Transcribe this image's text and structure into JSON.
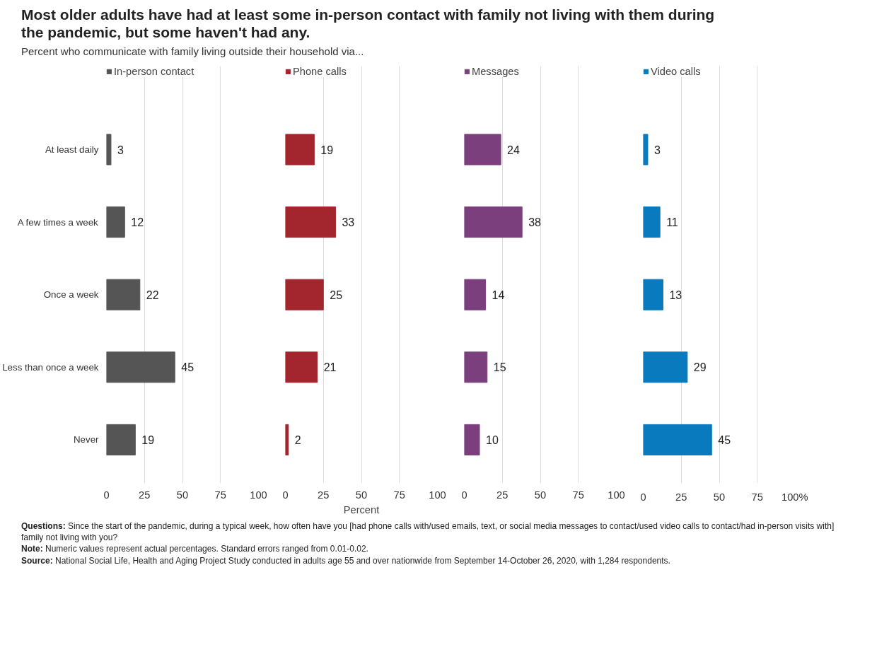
{
  "chart_data": [
    {
      "type": "bar",
      "orientation": "horizontal",
      "title": "Most older adults have had at least some in-person contact with family not living with them during the pandemic, but some haven't had any.",
      "subtitle": "Percent who communicate with family living outside their household via...",
      "categories": [
        "At least daily",
        "A few times a week",
        "Once a week",
        "Less than once a week",
        "Never"
      ],
      "series": [
        {
          "name": "In-person contact",
          "color": "#555555",
          "values": [
            3,
            12,
            22,
            45,
            19
          ]
        }
      ],
      "xlim": [
        0,
        100
      ],
      "xticks": [
        0,
        25,
        50,
        75,
        100
      ],
      "grid": "x",
      "legend": "top",
      "data_labels": true,
      "annotations": [
        "Questions: Since the start of the pandemic, during a typical week, how often have you [had phone calls with/used emails, text, or social media messages to contact/used video calls to contact/had in-person visits with] family not living with you?",
        "Note: Numeric values represent actual percentages. Standard errors ranged from 0.01-0.02.",
        "Source: National Social Life, Health and Aging Project Study conducted in adults age 55 and over nationwide from September 14-October 26, 2020, with 1,284 respondents."
      ]
    },
    {
      "type": "bar",
      "orientation": "horizontal",
      "xlabel": "Percent",
      "series": [
        {
          "name": "Phone calls",
          "color": "#a3262e",
          "values": [
            19,
            33,
            25,
            21,
            2
          ]
        }
      ],
      "xlim": [
        0,
        100
      ],
      "xticks": [
        0,
        25,
        50,
        75,
        100
      ],
      "grid": "x",
      "legend": "top",
      "data_labels": true,
      "tick_labels": "x"
    },
    {
      "type": "bar",
      "orientation": "horizontal",
      "series": [
        {
          "name": "Messages",
          "color": "#7b3f7e",
          "values": [
            24,
            38,
            14,
            15,
            10
          ]
        }
      ],
      "xlim": [
        0,
        100
      ],
      "xticks": [
        0,
        25,
        50,
        75,
        100
      ],
      "grid": "x",
      "legend": "top",
      "data_labels": true,
      "tick_labels": "x"
    },
    {
      "type": "bar",
      "orientation": "horizontal",
      "series": [
        {
          "name": "Video calls",
          "color": "#0a7abf",
          "values": [
            3,
            11,
            13,
            29,
            45
          ]
        }
      ],
      "xlim": [
        0,
        100
      ],
      "xticks": [
        0,
        25,
        50,
        75,
        {
          "value": 100,
          "label": "100%"
        }
      ],
      "grid": "x",
      "legend": "top",
      "data_labels": true,
      "tick_labels": "x"
    }
  ]
}
